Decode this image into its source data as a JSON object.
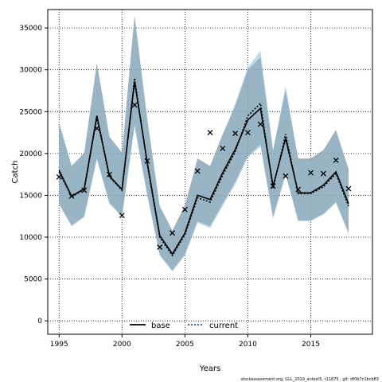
{
  "chart_data": {
    "type": "line",
    "title": "",
    "xlabel": "Years",
    "ylabel": "Catch",
    "xlim": [
      1994.1,
      2019.9
    ],
    "ylim": [
      -1600,
      37200
    ],
    "x_ticks": [
      1995,
      2000,
      2005,
      2010,
      2015
    ],
    "y_ticks": [
      0,
      5000,
      10000,
      15000,
      20000,
      25000,
      30000,
      35000
    ],
    "grid": true,
    "legend_position": "bottom-center",
    "years": [
      1995,
      1996,
      1997,
      1998,
      1999,
      2000,
      2001,
      2002,
      2003,
      2004,
      2005,
      2006,
      2007,
      2008,
      2009,
      2010,
      2011,
      2012,
      2013,
      2014,
      2015,
      2016,
      2017,
      2018
    ],
    "observed": {
      "name": "",
      "marker": "x",
      "values": [
        17200,
        14900,
        15600,
        23000,
        17500,
        12600,
        25800,
        19100,
        8800,
        10500,
        13300,
        17900,
        22500,
        20600,
        22400,
        22500,
        23500,
        16100,
        17300,
        15700,
        17700,
        17600,
        19200,
        15800
      ]
    },
    "series": [
      {
        "name": "base",
        "style": "solid",
        "color": "#000000",
        "band_color": "#8c8c8c",
        "values": [
          18000,
          14900,
          15800,
          24500,
          17300,
          15700,
          28600,
          19000,
          10200,
          8000,
          10500,
          15000,
          14500,
          17700,
          20500,
          24000,
          25400,
          16100,
          21800,
          15300,
          15300,
          16200,
          17800,
          14000
        ],
        "lower": [
          14000,
          11400,
          12500,
          19400,
          14100,
          12500,
          23400,
          15200,
          7900,
          6000,
          8000,
          11900,
          11300,
          14000,
          16600,
          19700,
          21100,
          12400,
          17600,
          12000,
          12000,
          12800,
          14200,
          10500
        ],
        "upper": [
          23700,
          18500,
          20100,
          30800,
          22000,
          20100,
          36500,
          24200,
          13700,
          10800,
          13800,
          19400,
          18500,
          22300,
          25700,
          30000,
          31500,
          20400,
          27600,
          19400,
          19400,
          20400,
          22800,
          18100
        ]
      },
      {
        "name": "current",
        "style": "dotted",
        "color": "#1f5fa8",
        "band_color": "#8cc0dc",
        "values": [
          17800,
          14800,
          15700,
          24300,
          17200,
          15600,
          29000,
          18800,
          10000,
          7800,
          10300,
          14700,
          14200,
          17400,
          20200,
          24500,
          26000,
          15800,
          22300,
          15200,
          15200,
          16000,
          17600,
          13700
        ],
        "lower": [
          13900,
          11300,
          12400,
          19300,
          14000,
          12400,
          23200,
          15000,
          7800,
          5900,
          7800,
          11700,
          11100,
          13700,
          16300,
          19500,
          20800,
          12200,
          17400,
          11900,
          11900,
          12700,
          14100,
          10400
        ],
        "upper": [
          23600,
          18400,
          20000,
          30600,
          21900,
          20000,
          36300,
          24000,
          13600,
          10600,
          13600,
          19200,
          18300,
          22000,
          26000,
          30300,
          32300,
          20200,
          28100,
          19200,
          19200,
          20200,
          22600,
          18000
        ]
      }
    ]
  },
  "footnote": "stockassessment.org, GLL_2019_antest5, r11875 , git: df0b7c1bcb83"
}
